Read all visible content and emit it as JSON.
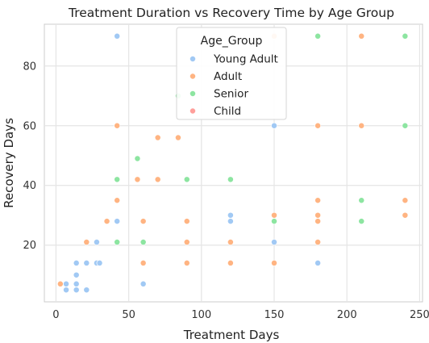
{
  "chart_data": {
    "type": "scatter",
    "title": "Treatment Duration vs Recovery Time by Age Group",
    "xlabel": "Treatment Days",
    "ylabel": "Recovery Days",
    "xlim": [
      -8,
      252
    ],
    "ylim": [
      1,
      94
    ],
    "x_ticks": [
      0,
      50,
      100,
      150,
      200,
      250
    ],
    "y_ticks": [
      20,
      40,
      60,
      80
    ],
    "grid": true,
    "legend_title": "Age_Group",
    "legend_position": "upper center",
    "series": [
      {
        "name": "Young Adult",
        "color": "#a1c9f4",
        "points": [
          [
            42,
            90
          ],
          [
            150,
            60
          ],
          [
            42,
            28
          ],
          [
            120,
            30
          ],
          [
            120,
            28
          ],
          [
            150,
            21
          ],
          [
            180,
            14
          ],
          [
            28,
            21
          ],
          [
            28,
            14
          ],
          [
            30,
            14
          ],
          [
            21,
            14
          ],
          [
            14,
            14
          ],
          [
            14,
            10
          ],
          [
            14,
            7
          ],
          [
            7,
            7
          ],
          [
            7,
            5
          ],
          [
            14,
            5
          ],
          [
            21,
            5
          ],
          [
            60,
            7
          ]
        ]
      },
      {
        "name": "Adult",
        "color": "#ffb482",
        "points": [
          [
            150,
            90
          ],
          [
            210,
            90
          ],
          [
            42,
            60
          ],
          [
            180,
            60
          ],
          [
            210,
            60
          ],
          [
            70,
            56
          ],
          [
            84,
            56
          ],
          [
            42,
            42
          ],
          [
            56,
            42
          ],
          [
            70,
            42
          ],
          [
            42,
            35
          ],
          [
            35,
            28
          ],
          [
            60,
            28
          ],
          [
            90,
            28
          ],
          [
            150,
            30
          ],
          [
            180,
            30
          ],
          [
            180,
            28
          ],
          [
            180,
            35
          ],
          [
            240,
            35
          ],
          [
            240,
            30
          ],
          [
            21,
            21
          ],
          [
            90,
            21
          ],
          [
            120,
            21
          ],
          [
            180,
            21
          ],
          [
            60,
            14
          ],
          [
            90,
            14
          ],
          [
            120,
            14
          ],
          [
            150,
            14
          ],
          [
            3,
            7
          ]
        ]
      },
      {
        "name": "Senior",
        "color": "#8de5a1",
        "points": [
          [
            180,
            90
          ],
          [
            240,
            90
          ],
          [
            84,
            70
          ],
          [
            240,
            60
          ],
          [
            56,
            49
          ],
          [
            42,
            42
          ],
          [
            90,
            42
          ],
          [
            120,
            42
          ],
          [
            42,
            21
          ],
          [
            60,
            21
          ],
          [
            150,
            28
          ],
          [
            210,
            35
          ],
          [
            210,
            28
          ]
        ]
      },
      {
        "name": "Child",
        "color": "#ff9f9b",
        "points": []
      }
    ]
  }
}
